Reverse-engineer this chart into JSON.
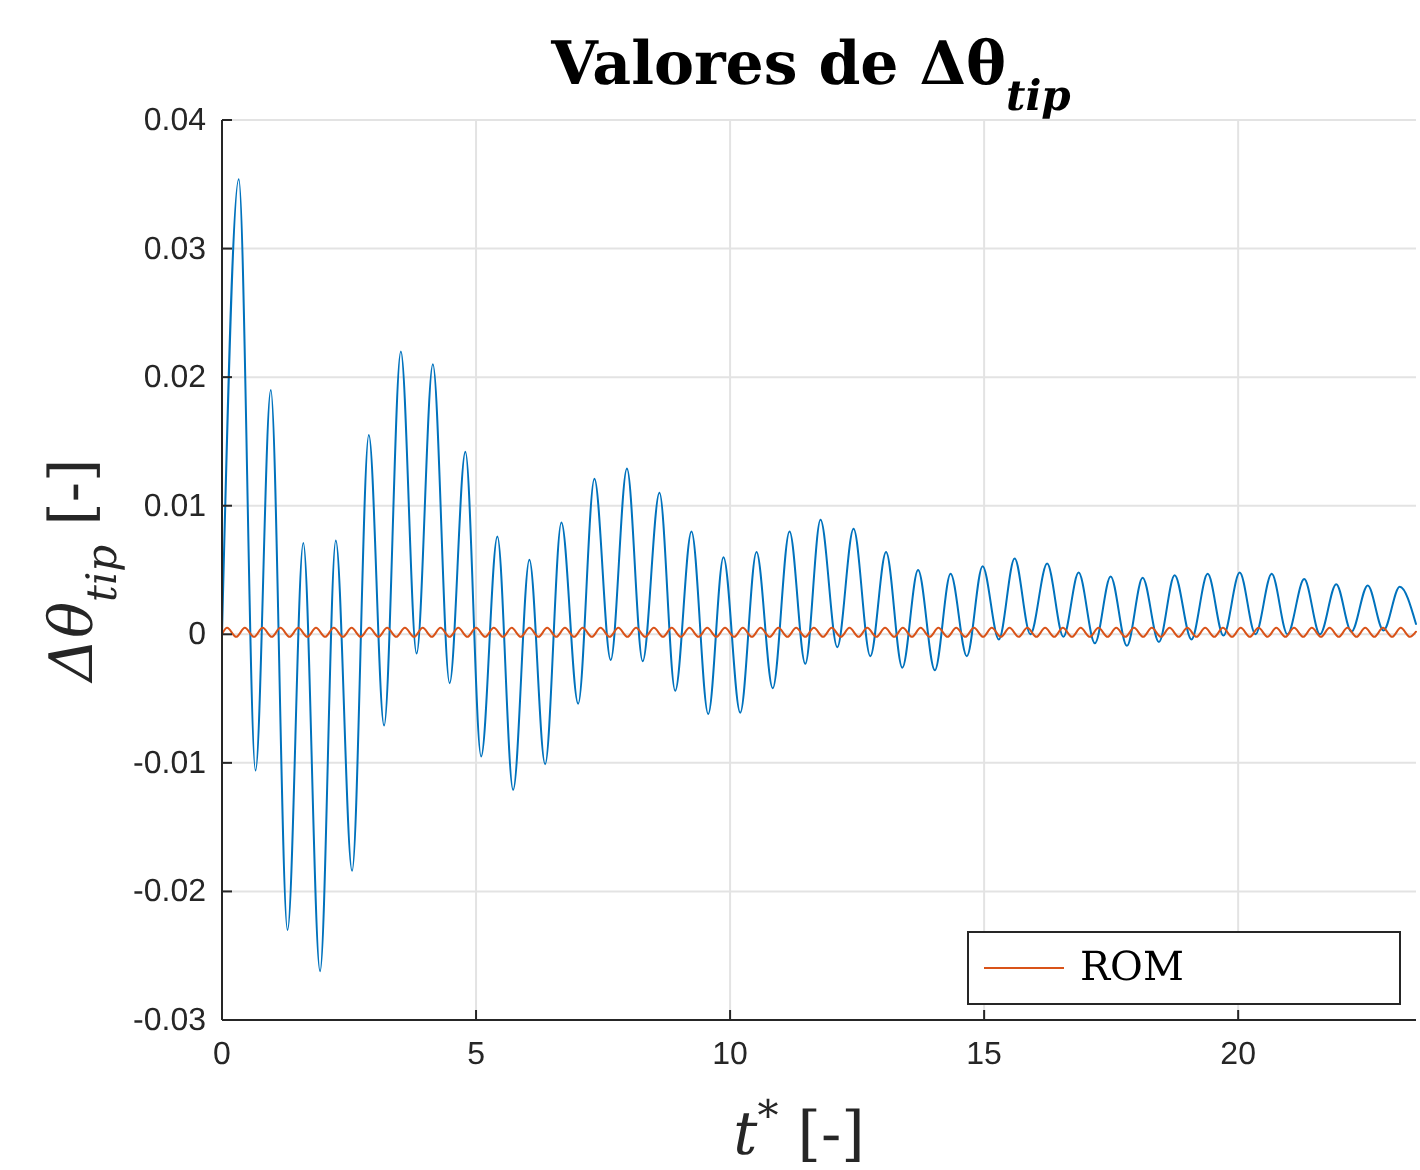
{
  "chart_data": {
    "type": "line",
    "title": "Valores de Δθ$_{tip}$",
    "xlabel": "t$^{*}$  [-]",
    "ylabel": "Δθ$_{tip}$  [-]",
    "xlim": [
      0,
      23.5
    ],
    "ylim": [
      -0.03,
      0.04
    ],
    "xticks": [
      0,
      5,
      10,
      15,
      20
    ],
    "yticks": [
      -0.03,
      -0.02,
      -0.01,
      0,
      0.01,
      0.02,
      0.03,
      0.04
    ],
    "grid": true,
    "legend": "bottom right",
    "line_style": "solid",
    "series": [
      {
        "color": "#0072bd",
        "x": [
          0,
          0.33,
          0.66,
          0.96,
          1.29,
          1.6,
          1.93,
          2.24,
          2.56,
          2.89,
          3.19,
          3.52,
          3.83,
          4.15,
          4.48,
          4.79,
          5.1,
          5.42,
          5.73,
          6.05,
          6.36,
          6.68,
          7.01,
          7.33,
          7.65,
          7.97,
          8.28,
          8.61,
          8.92,
          9.24,
          9.57,
          9.87,
          10.2,
          10.52,
          10.84,
          11.17,
          11.48,
          11.78,
          12.11,
          12.43,
          12.76,
          13.07,
          13.39,
          13.7,
          14.03,
          14.34,
          14.66,
          14.97,
          15.29,
          15.6,
          15.91,
          16.24,
          16.56,
          16.86,
          17.18,
          17.49,
          17.81,
          18.12,
          18.44,
          18.75,
          19.08,
          19.4,
          19.71,
          20.03,
          20.34,
          20.66,
          20.97,
          21.3,
          21.61,
          21.93,
          22.23,
          22.55,
          22.86,
          23.18,
          23.5
        ],
        "values": [
          0,
          0.0354,
          -0.0106,
          0.019,
          -0.023,
          0.0071,
          -0.0262,
          0.0073,
          -0.0184,
          0.0155,
          -0.0071,
          0.022,
          -0.0015,
          0.021,
          -0.0038,
          0.0142,
          -0.0095,
          0.0076,
          -0.0121,
          0.0058,
          -0.0101,
          0.0087,
          -0.0054,
          0.0121,
          -0.002,
          0.0129,
          -0.0021,
          0.011,
          -0.0044,
          0.008,
          -0.0062,
          0.006,
          -0.0061,
          0.0064,
          -0.0042,
          0.008,
          -0.0023,
          0.0089,
          -0.001,
          0.0082,
          -0.0017,
          0.0064,
          -0.0026,
          0.005,
          -0.0028,
          0.0047,
          -0.0017,
          0.0053,
          -0.0004,
          0.0059,
          0,
          0.0055,
          -0.0002,
          0.0048,
          -0.0007,
          0.0045,
          -0.0009,
          0.0044,
          -0.0006,
          0.0046,
          -0.0004,
          0.0047,
          -0.0001,
          0.0048,
          0,
          0.0047,
          0,
          0.0043,
          0,
          0.0039,
          0.0002,
          0.0038,
          0.0003,
          0.0037,
          0.0008
        ]
      },
      {
        "name": "ROM",
        "color": "#d95319",
        "x": [
          0,
          0.1,
          0.28,
          0.45,
          0.63,
          0.8,
          0.98,
          1.15,
          1.33,
          1.5,
          1.68,
          1.85,
          2.03,
          2.2,
          2.38,
          2.55,
          2.73,
          2.9,
          3.08,
          3.25,
          3.43,
          3.6,
          3.78,
          3.95,
          4.13,
          4.3,
          4.48,
          4.65,
          4.83,
          5,
          5.18,
          5.35,
          5.53,
          5.7,
          5.88,
          6.05,
          6.23,
          6.4,
          6.58,
          6.75,
          6.93,
          7.1,
          7.28,
          7.45,
          7.63,
          7.8,
          7.98,
          8.15,
          8.33,
          8.5,
          8.68,
          8.85,
          9.03,
          9.2,
          9.38,
          9.55,
          9.73,
          9.9,
          10.08,
          10.25,
          10.43,
          10.6,
          10.78,
          10.95,
          11.13,
          11.3,
          11.48,
          11.65,
          11.83,
          12,
          12.18,
          12.35,
          12.53,
          12.7,
          12.88,
          13.05,
          13.23,
          13.4,
          13.58,
          13.75,
          13.93,
          14.1,
          14.28,
          14.45,
          14.63,
          14.8,
          14.98,
          15.15,
          15.33,
          15.5,
          15.68,
          15.85,
          16.03,
          16.2,
          16.38,
          16.55,
          16.73,
          16.9,
          17.08,
          17.25,
          17.43,
          17.6,
          17.78,
          17.95,
          18.13,
          18.3,
          18.48,
          18.65,
          18.83,
          19,
          19.18,
          19.35,
          19.53,
          19.7,
          19.88,
          20.05,
          20.23,
          20.4,
          20.58,
          20.75,
          20.93,
          21.1,
          21.28,
          21.45,
          21.63,
          21.8,
          21.98,
          22.15,
          22.33,
          22.5,
          22.68,
          22.85,
          23.03,
          23.2,
          23.38,
          23.5
        ],
        "values": [
          0,
          0.0005,
          -0.0002,
          0.0005,
          -0.0002,
          0.0005,
          -0.0002,
          0.0005,
          -0.0002,
          0.0005,
          -0.0002,
          0.0005,
          -0.0002,
          0.0005,
          -0.0002,
          0.0005,
          -0.0002,
          0.0005,
          -0.0002,
          0.0005,
          -0.0002,
          0.0005,
          -0.0002,
          0.0005,
          -0.0002,
          0.0005,
          -0.0002,
          0.0005,
          -0.0002,
          0.0005,
          -0.0002,
          0.0005,
          -0.0002,
          0.0005,
          -0.0002,
          0.0005,
          -0.0002,
          0.0005,
          -0.0002,
          0.0005,
          -0.0002,
          0.0005,
          -0.0002,
          0.0005,
          -0.0002,
          0.0005,
          -0.0002,
          0.0005,
          -0.0002,
          0.0005,
          -0.0002,
          0.0005,
          -0.0002,
          0.0005,
          -0.0002,
          0.0005,
          -0.0002,
          0.0005,
          -0.0002,
          0.0005,
          -0.0002,
          0.0005,
          -0.0002,
          0.0005,
          -0.0002,
          0.0005,
          -0.0002,
          0.0005,
          -0.0002,
          0.0005,
          -0.0002,
          0.0005,
          -0.0002,
          0.0005,
          -0.0002,
          0.0005,
          -0.0002,
          0.0005,
          -0.0002,
          0.0005,
          -0.0002,
          0.0005,
          -0.0002,
          0.0005,
          -0.0002,
          0.0005,
          -0.0002,
          0.0005,
          -0.0002,
          0.0005,
          -0.0002,
          0.0005,
          -0.0002,
          0.0005,
          -0.0002,
          0.0005,
          -0.0002,
          0.0005,
          -0.0002,
          0.0005,
          -0.0002,
          0.0005,
          -0.0002,
          0.0005,
          -0.0002,
          0.0005,
          -0.0002,
          0.0005,
          -0.0002,
          0.0005,
          -0.0002,
          0.0005,
          -0.0002,
          0.0005,
          -0.0002,
          0.0005,
          -0.0002,
          0.0005,
          -0.0002,
          0.0005,
          -0.0002,
          0.0005,
          -0.0002,
          0.0005,
          -0.0002,
          0.0005,
          -0.0002,
          0.0005,
          -0.0002,
          0.0005,
          -0.0002,
          0.0005,
          -0.0002,
          0.0005,
          -0.0002,
          0.0002
        ]
      }
    ]
  }
}
